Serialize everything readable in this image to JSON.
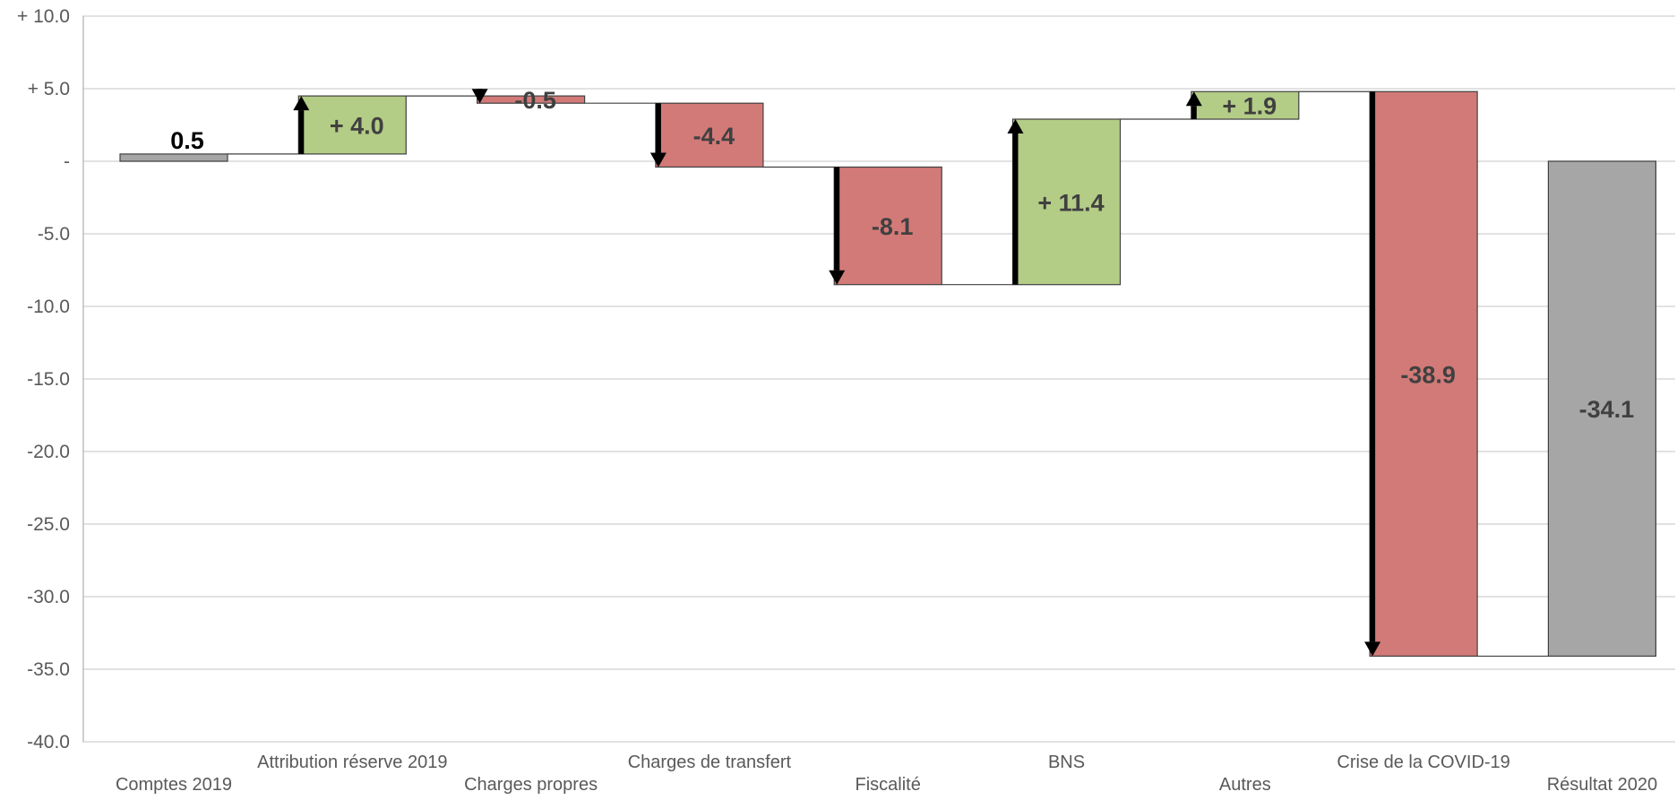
{
  "chart_data": {
    "type": "waterfall",
    "ylim": [
      -40,
      10
    ],
    "ytick_values": [
      10,
      5,
      0,
      -5,
      -10,
      -15,
      -20,
      -25,
      -30,
      -35,
      -40
    ],
    "ytick_labels": [
      "+ 10.0",
      "+ 5.0",
      "-",
      "-5.0",
      "-10.0",
      "-15.0",
      "-20.0",
      "-25.0",
      "-30.0",
      "-35.0",
      "-40.0"
    ],
    "grid": true,
    "categories": [
      "Comptes 2019",
      "Attribution réserve 2019",
      "Charges propres",
      "Charges de transfert",
      "Fiscalité",
      "BNS",
      "Autres",
      "Crise de la COVID-19",
      "Résultat 2020"
    ],
    "kinds": [
      "total",
      "delta",
      "delta",
      "delta",
      "delta",
      "delta",
      "delta",
      "delta",
      "total"
    ],
    "values": [
      0.5,
      4.0,
      -0.5,
      -4.4,
      -8.1,
      11.4,
      1.9,
      -38.9,
      -34.1
    ],
    "value_labels": [
      "0.5",
      "+ 4.0",
      "-0.5",
      "-4.4",
      "-8.1",
      "+ 11.4",
      "+ 1.9",
      "-38.9",
      "-34.1"
    ],
    "colors": {
      "increase": "#b3cc86",
      "decrease": "#d27a78",
      "total": "#a6a6a6",
      "arrow": "#000000",
      "label": "#404040",
      "label_first": "#000000"
    }
  }
}
